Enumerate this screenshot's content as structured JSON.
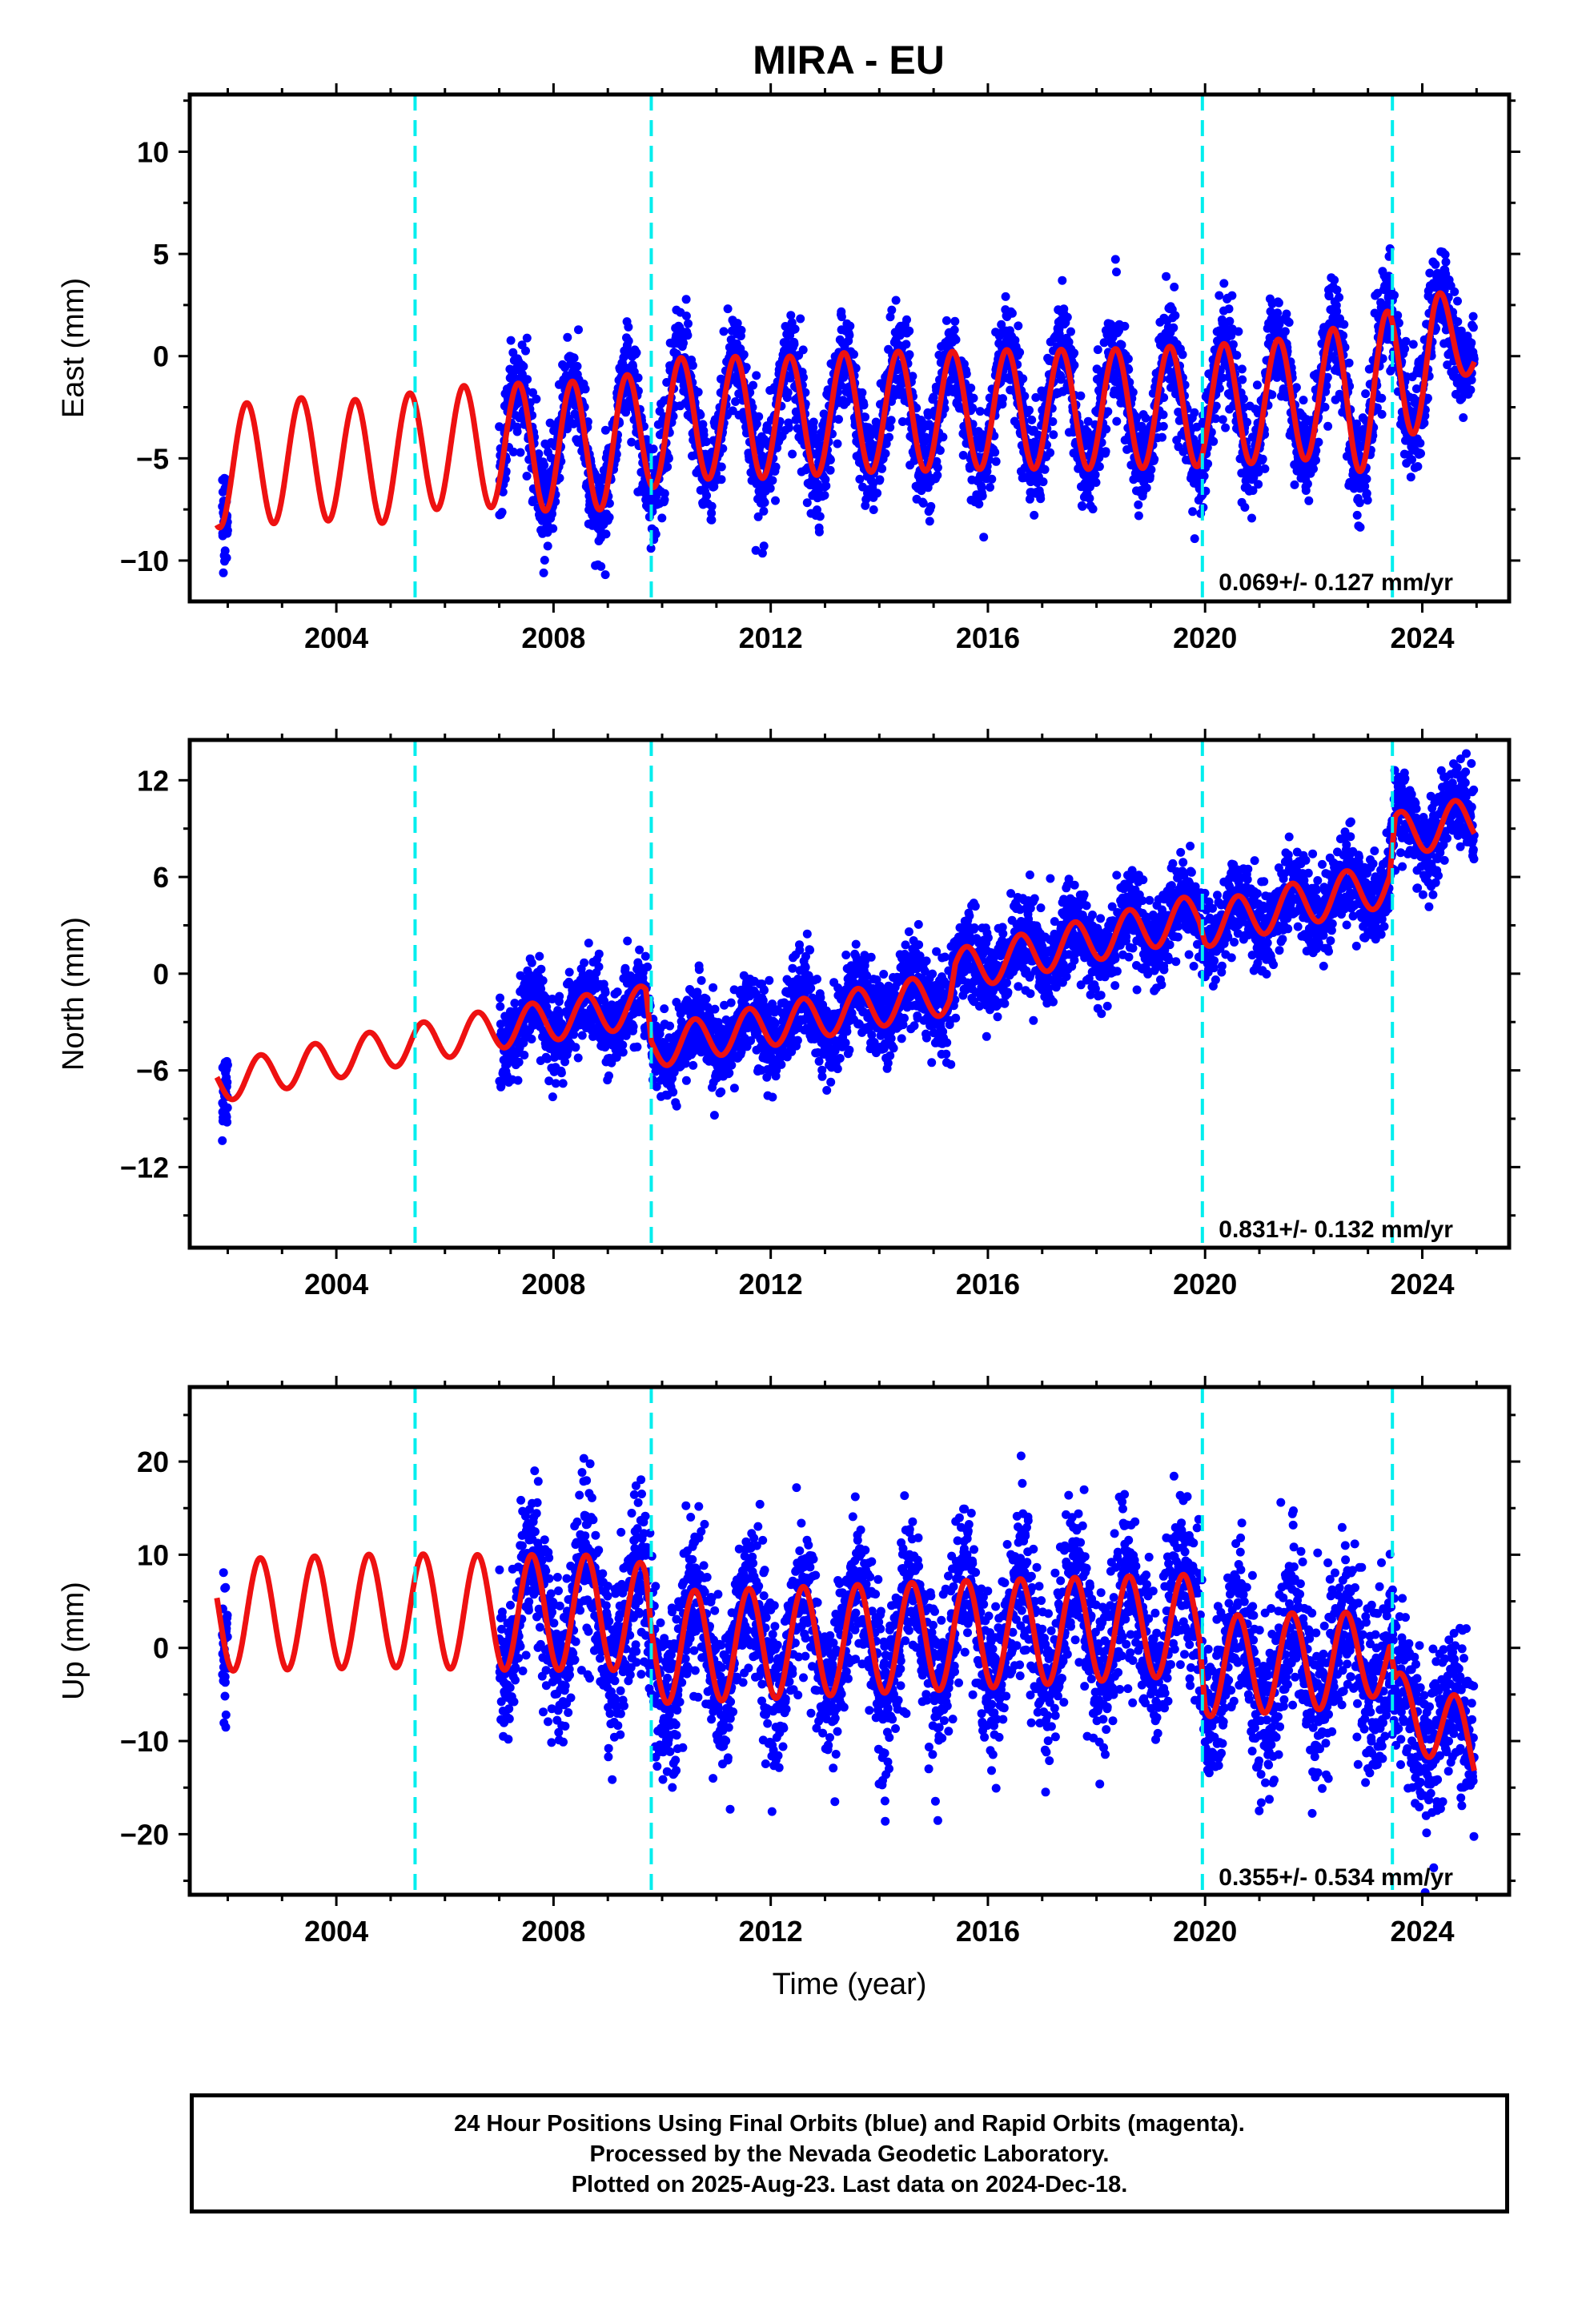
{
  "title": "MIRA - EU",
  "xlabel": "Time (year)",
  "caption": [
    "24 Hour Positions Using Final Orbits (blue) and Rapid Orbits (magenta).",
    "Processed by the Nevada Geodetic Laboratory.",
    "Plotted on 2025-Aug-23. Last data on 2024-Dec-18."
  ],
  "colors": {
    "data_points": "#0000ff",
    "model_fit": "#ee1111",
    "event_lines": "#00eeee"
  },
  "chart_data": [
    {
      "type": "scatter",
      "ylabel": "East (mm)",
      "rate_label": "0.069+/- 0.127 mm/yr",
      "xlim": [
        2001.3,
        2025.6
      ],
      "ylim": [
        -12,
        12.8
      ],
      "xticks": [
        2004,
        2008,
        2012,
        2016,
        2020,
        2024
      ],
      "yticks": [
        -10,
        -5,
        0,
        5,
        10
      ],
      "event_lines_x": [
        2005.45,
        2009.8,
        2019.95,
        2023.45
      ],
      "model": {
        "data_start": [
          2001.9,
          2002.0
        ],
        "gap": [
          2002.0,
          2007.0
        ],
        "data_end": 2024.96,
        "fit": [
          [
            2001.8,
            -5.4
          ],
          [
            2002.8,
            -5.2
          ],
          [
            2003.5,
            -5.0
          ],
          [
            2004.8,
            -5.2
          ],
          [
            2005.8,
            -4.5
          ],
          [
            2006.9,
            -4.4
          ],
          [
            2008.0,
            -4.4
          ],
          [
            2009.0,
            -4.4
          ],
          [
            2010.1,
            -3.1
          ],
          [
            2011.1,
            -3.0
          ],
          [
            2012.2,
            -3.0
          ],
          [
            2013.2,
            -2.8
          ],
          [
            2014.2,
            -2.7
          ],
          [
            2015.2,
            -2.7
          ],
          [
            2016.2,
            -2.6
          ],
          [
            2017.2,
            -2.6
          ],
          [
            2018.2,
            -2.6
          ],
          [
            2019.2,
            -2.5
          ],
          [
            2020.2,
            -2.4
          ],
          [
            2021.2,
            -2.2
          ],
          [
            2022.2,
            -2.0
          ],
          [
            2023.2,
            -1.8
          ],
          [
            2024.2,
            0.3
          ],
          [
            2025.0,
            0.6
          ]
        ],
        "amplitude": [
          [
            2001.8,
            3.0
          ],
          [
            2007.0,
            3.0
          ],
          [
            2008.0,
            3.2
          ],
          [
            2010.0,
            3.0
          ],
          [
            2016.0,
            2.9
          ],
          [
            2022.0,
            3.0
          ],
          [
            2023.0,
            3.9
          ],
          [
            2024.2,
            3.1
          ],
          [
            2025.0,
            1.0
          ]
        ],
        "peak_phase": 0.35,
        "noise": 1.25
      }
    },
    {
      "type": "scatter",
      "ylabel": "North (mm)",
      "rate_label": "0.831+/- 0.132 mm/yr",
      "xlim": [
        2001.3,
        2025.6
      ],
      "ylim": [
        -17,
        14.5
      ],
      "xticks": [
        2004,
        2008,
        2012,
        2016,
        2020,
        2024
      ],
      "yticks": [
        -12,
        -6,
        0,
        6,
        12
      ],
      "event_lines_x": [
        2005.45,
        2009.8,
        2019.95,
        2023.45
      ],
      "model": {
        "data_start": [
          2001.9,
          2002.0
        ],
        "gap": [
          2002.0,
          2007.0
        ],
        "data_end": 2024.96,
        "fit": [
          [
            2001.8,
            -6.8
          ],
          [
            2005.0,
            -4.6
          ],
          [
            2007.0,
            -3.4
          ],
          [
            2009.7,
            -2.0
          ],
          [
            2009.8,
            -4.6
          ],
          [
            2012.0,
            -3.2
          ],
          [
            2015.3,
            -1.2
          ],
          [
            2015.4,
            0.2
          ],
          [
            2019.9,
            3.6
          ],
          [
            2020.0,
            3.0
          ],
          [
            2023.4,
            5.6
          ],
          [
            2023.5,
            8.6
          ],
          [
            2025.0,
            9.6
          ]
        ],
        "amplitude": [
          [
            2001.8,
            1.2
          ],
          [
            2025.0,
            1.4
          ]
        ],
        "peak_phase": 0.6,
        "noise": 1.3
      }
    },
    {
      "type": "scatter",
      "ylabel": "Up (mm)",
      "rate_label": "0.355+/- 0.534 mm/yr",
      "xlim": [
        2001.3,
        2025.6
      ],
      "ylim": [
        -26.5,
        28
      ],
      "xticks": [
        2004,
        2008,
        2012,
        2016,
        2020,
        2024
      ],
      "yticks": [
        -20,
        -10,
        0,
        10,
        20
      ],
      "event_lines_x": [
        2005.45,
        2009.8,
        2019.95,
        2023.45
      ],
      "model": {
        "data_start": [
          2001.9,
          2002.0
        ],
        "gap": [
          2002.0,
          2007.0
        ],
        "data_end": 2024.96,
        "fit": [
          [
            2001.8,
            3.5
          ],
          [
            2005.0,
            4.0
          ],
          [
            2007.0,
            3.8
          ],
          [
            2009.0,
            3.8
          ],
          [
            2009.7,
            3.0
          ],
          [
            2009.8,
            0.0
          ],
          [
            2012.0,
            0.5
          ],
          [
            2016.0,
            1.5
          ],
          [
            2019.9,
            2.5
          ],
          [
            2020.0,
            -2.0
          ],
          [
            2023.4,
            -1.0
          ],
          [
            2023.5,
            -6.0
          ],
          [
            2024.5,
            -9.0
          ],
          [
            2025.0,
            -10.5
          ]
        ],
        "amplitude": [
          [
            2001.8,
            6.0
          ],
          [
            2008.0,
            6.2
          ],
          [
            2010.0,
            6.0
          ],
          [
            2016.0,
            5.8
          ],
          [
            2020.0,
            5.4
          ],
          [
            2022.5,
            5.2
          ],
          [
            2023.5,
            3.5
          ],
          [
            2025.0,
            4.5
          ]
        ],
        "peak_phase": 0.6,
        "noise": 4.3
      }
    }
  ]
}
